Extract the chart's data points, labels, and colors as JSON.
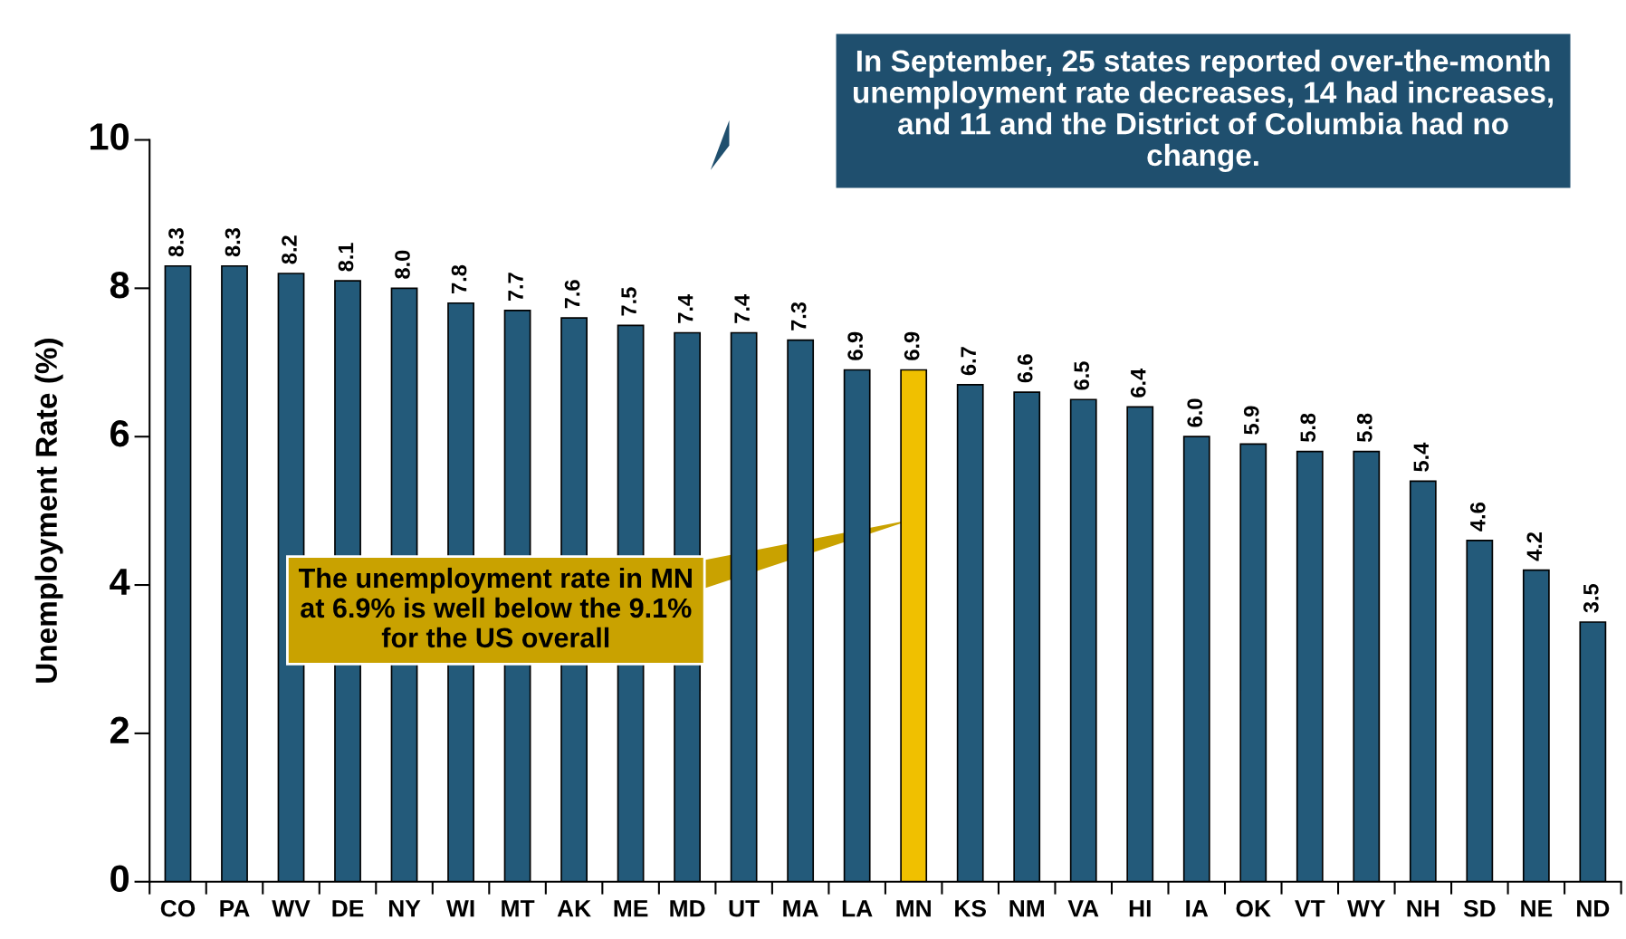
{
  "chart_data": {
    "type": "bar",
    "ylabel": "Unemployment Rate (%)",
    "categories": [
      "CO",
      "PA",
      "WV",
      "DE",
      "NY",
      "WI",
      "MT",
      "AK",
      "ME",
      "MD",
      "UT",
      "MA",
      "LA",
      "MN",
      "KS",
      "NM",
      "VA",
      "HI",
      "IA",
      "OK",
      "VT",
      "WY",
      "NH",
      "SD",
      "NE",
      "ND"
    ],
    "values": [
      8.3,
      8.3,
      8.2,
      8.1,
      8.0,
      7.8,
      7.7,
      7.6,
      7.5,
      7.4,
      7.4,
      7.3,
      6.9,
      6.9,
      6.7,
      6.6,
      6.5,
      6.4,
      6.0,
      5.9,
      5.8,
      5.8,
      5.4,
      4.6,
      4.2,
      3.5
    ],
    "value_labels": [
      "8.3",
      "8.3",
      "8.2",
      "8.1",
      "8.0",
      "7.8",
      "7.7",
      "7.6",
      "7.5",
      "7.4",
      "7.4",
      "7.3",
      "6.9",
      "6.9",
      "6.7",
      "6.6",
      "6.5",
      "6.4",
      "6.0",
      "5.9",
      "5.8",
      "5.8",
      "5.4",
      "4.6",
      "4.2",
      "3.5"
    ],
    "colors": [
      "#235a7a",
      "#235a7a",
      "#235a7a",
      "#235a7a",
      "#235a7a",
      "#235a7a",
      "#235a7a",
      "#235a7a",
      "#235a7a",
      "#235a7a",
      "#235a7a",
      "#235a7a",
      "#235a7a",
      "#f0c000",
      "#235a7a",
      "#235a7a",
      "#235a7a",
      "#235a7a",
      "#235a7a",
      "#235a7a",
      "#235a7a",
      "#235a7a",
      "#235a7a",
      "#235a7a",
      "#235a7a",
      "#235a7a"
    ],
    "ylim": [
      0,
      10
    ],
    "yticks": [
      0,
      2,
      4,
      6,
      8,
      10
    ],
    "grid": false,
    "annotations": [
      "In September, 25 states reported over-the-month unemployment rate decreases, 14 had increases, and 11 and the District of Columbia had no change.",
      "The unemployment rate in MN at 6.9% is well below the 9.1% for the US overall"
    ]
  }
}
